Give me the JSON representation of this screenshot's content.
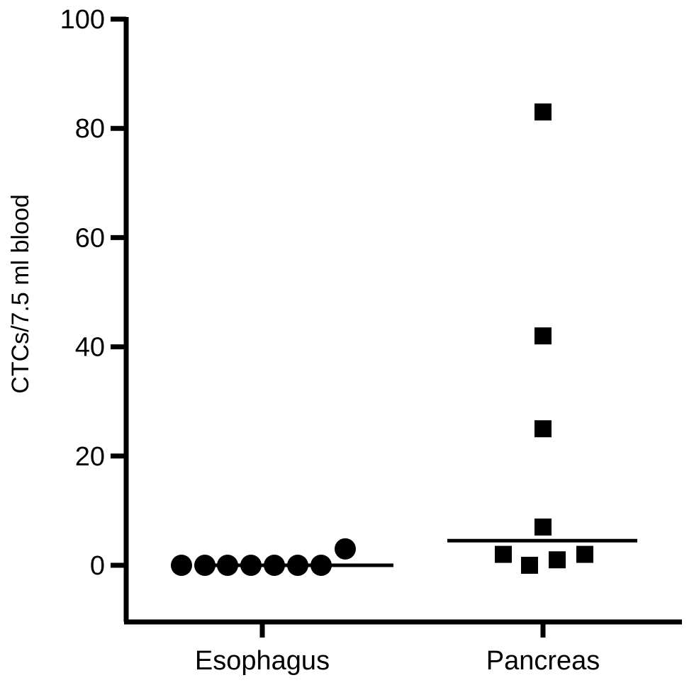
{
  "chart_data": {
    "type": "scatter",
    "title": "",
    "xlabel": "",
    "ylabel": "CTCs/7.5 ml blood",
    "ylim": [
      -10,
      100
    ],
    "yticks": [
      0,
      20,
      40,
      60,
      80,
      100
    ],
    "grid": false,
    "legend": "none",
    "categories": [
      "Esophagus",
      "Pancreas"
    ],
    "series": [
      {
        "category": "Esophagus",
        "marker": "circle",
        "values": [
          0,
          0,
          0,
          0,
          0,
          0,
          0,
          3
        ],
        "median": 0
      },
      {
        "category": "Pancreas",
        "marker": "square",
        "values": [
          83,
          42,
          25,
          7,
          2,
          0,
          1,
          2
        ],
        "median": 4.5
      }
    ],
    "colors": {
      "marker": "#000000",
      "axis": "#000000"
    }
  }
}
